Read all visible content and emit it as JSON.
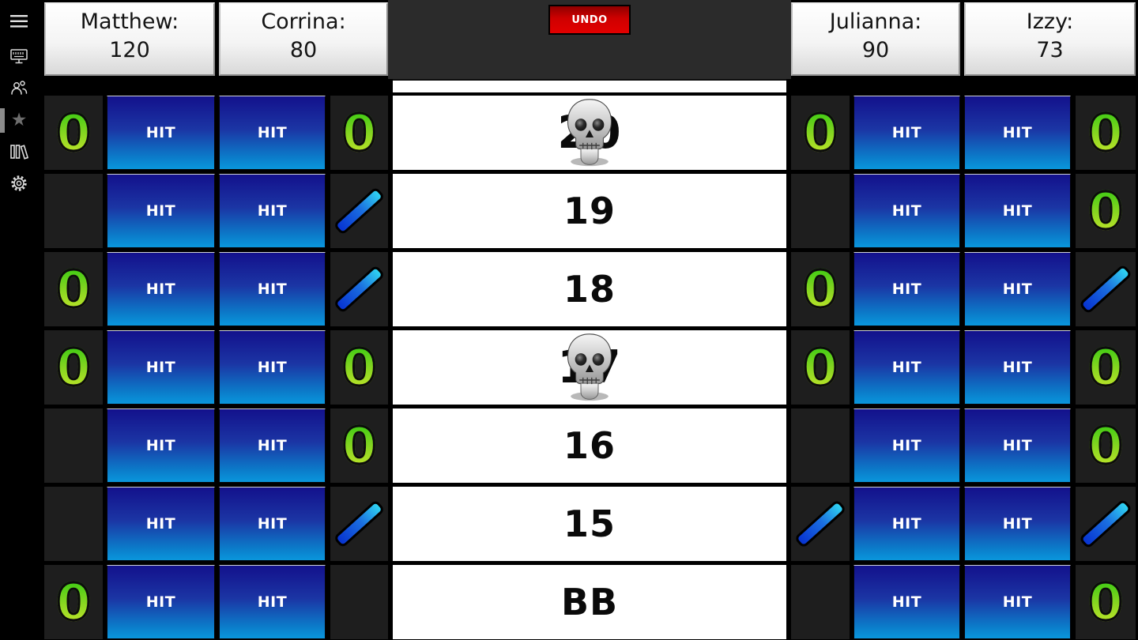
{
  "app": {
    "undo_label": "UNDO",
    "hit_label": "HIT",
    "mark_zero_glyph": "0",
    "star_glyph": "★"
  },
  "sidebar": {
    "icons": [
      {
        "name": "menu"
      },
      {
        "name": "display"
      },
      {
        "name": "people"
      },
      {
        "name": "star",
        "active": true
      },
      {
        "name": "library"
      },
      {
        "name": "settings"
      }
    ]
  },
  "players": [
    {
      "id": "matthew",
      "label": "Matthew:",
      "score": "120"
    },
    {
      "id": "corrina",
      "label": "Corrina:",
      "score": "80"
    },
    {
      "id": "julianna",
      "label": "Julianna:",
      "score": "90"
    },
    {
      "id": "izzy",
      "label": "Izzy:",
      "score": "73"
    }
  ],
  "rows": [
    {
      "target": "20",
      "skull": true,
      "marks": {
        "matthew": "zero",
        "corrina": "zero",
        "julianna": "zero",
        "izzy": "zero"
      }
    },
    {
      "target": "19",
      "skull": false,
      "marks": {
        "matthew": "none",
        "corrina": "slash",
        "julianna": "none",
        "izzy": "zero"
      }
    },
    {
      "target": "18",
      "skull": false,
      "marks": {
        "matthew": "zero",
        "corrina": "slash",
        "julianna": "zero",
        "izzy": "slash"
      }
    },
    {
      "target": "17",
      "skull": true,
      "marks": {
        "matthew": "zero",
        "corrina": "zero",
        "julianna": "zero",
        "izzy": "zero"
      }
    },
    {
      "target": "16",
      "skull": false,
      "marks": {
        "matthew": "none",
        "corrina": "zero",
        "julianna": "none",
        "izzy": "zero"
      }
    },
    {
      "target": "15",
      "skull": false,
      "marks": {
        "matthew": "none",
        "corrina": "slash",
        "julianna": "slash",
        "izzy": "slash"
      }
    },
    {
      "target": "BB",
      "skull": false,
      "marks": {
        "matthew": "zero",
        "corrina": "none",
        "julianna": "none",
        "izzy": "zero"
      }
    }
  ],
  "colors": {
    "hit_gradient_top": "#13118c",
    "hit_gradient_bottom": "#0a96dc",
    "zero_green_top": "#3fcc14",
    "zero_green_bottom": "#c3e52a",
    "slash_blue_dark": "#0733d1",
    "slash_blue_light": "#2fd4f2",
    "undo_red": "#d40000",
    "center_header_bg": "#2b2b2b",
    "mark_cell_bg": "#1e1e1e",
    "header_box_bg": "#f4f4f4"
  }
}
